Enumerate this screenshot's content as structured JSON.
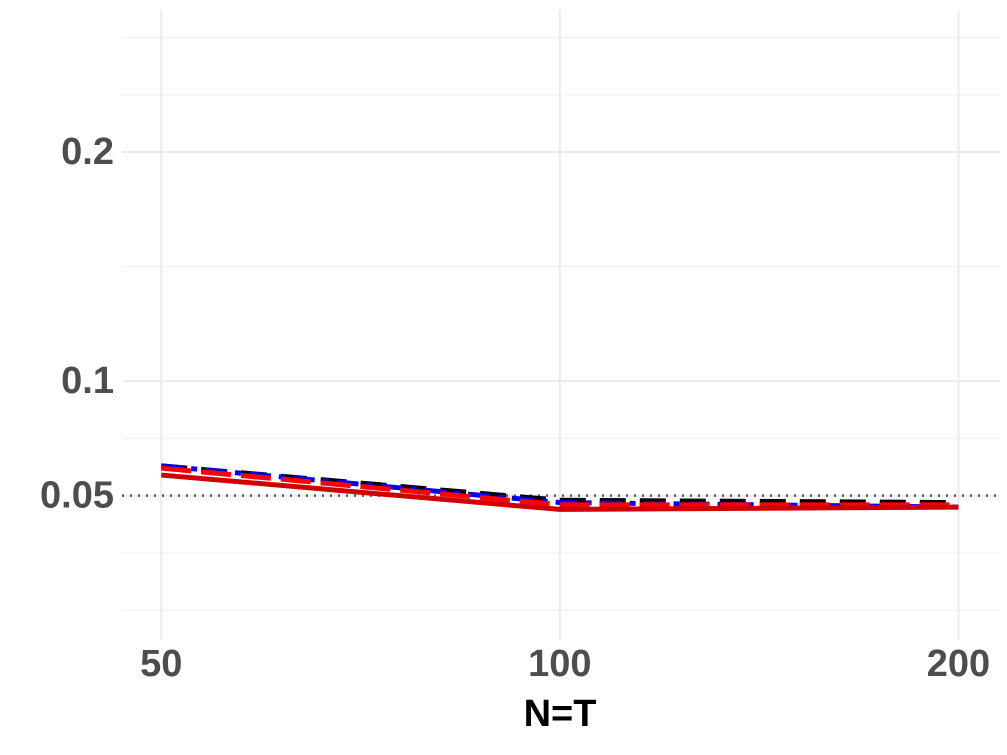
{
  "chart_data": {
    "type": "line",
    "x_label": "N=T",
    "x": [
      50,
      100,
      200
    ],
    "x_log": true,
    "xlim": [
      46.7,
      215
    ],
    "xticks": [
      50,
      100,
      200
    ],
    "ylim": [
      -0.013,
      0.262
    ],
    "yticks": [
      0.05,
      0.1,
      0.2
    ],
    "y_minor_grid": [
      0,
      0.025,
      0.075,
      0.15,
      0.225,
      0.25
    ],
    "grid": true,
    "reference_line": 0.05,
    "series": [
      {
        "color": "#000000",
        "dash": "26,14",
        "values": [
          0.063,
          0.048,
          0.047
        ]
      },
      {
        "color": "#0000ff",
        "dash": "22,8,6,8",
        "values": [
          0.063,
          0.047,
          0.045
        ]
      },
      {
        "color": "#ff0000",
        "dash": "30,10",
        "values": [
          0.062,
          0.046,
          0.046
        ]
      },
      {
        "color": "#d00000",
        "dash": "none",
        "values": [
          0.059,
          0.044,
          0.045
        ]
      }
    ]
  }
}
